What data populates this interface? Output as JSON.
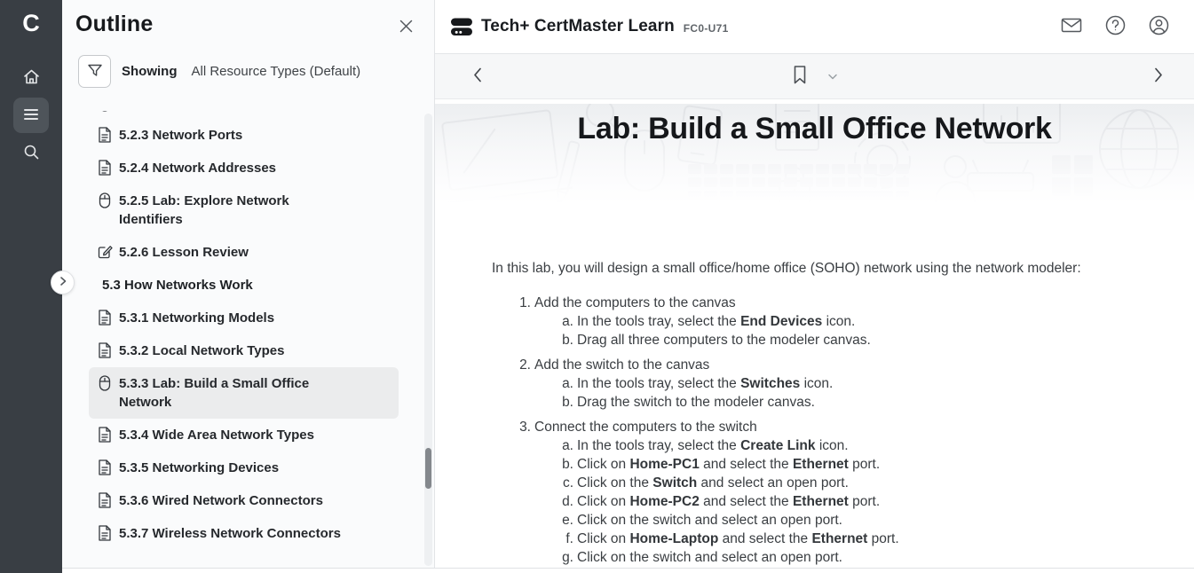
{
  "rail": {
    "logo_letter": "C",
    "items": [
      {
        "name": "home",
        "icon": "home-icon"
      },
      {
        "name": "outline",
        "icon": "outline-list-icon",
        "active": true
      },
      {
        "name": "search",
        "icon": "search-icon"
      }
    ]
  },
  "outline_panel": {
    "title": "Outline",
    "filter": {
      "label": "Showing",
      "value": "All Resource Types (Default)"
    },
    "items": [
      {
        "type": "topic",
        "icon": "mouse-icon",
        "label": "",
        "partial": true
      },
      {
        "type": "topic",
        "icon": "document-icon",
        "label": "5.2.3 Network Ports"
      },
      {
        "type": "topic",
        "icon": "document-icon",
        "label": "5.2.4 Network Addresses"
      },
      {
        "type": "topic",
        "icon": "mouse-icon",
        "label": "5.2.5 Lab: Explore Network Identifiers"
      },
      {
        "type": "topic",
        "icon": "edit-icon",
        "label": "5.2.6 Lesson Review"
      },
      {
        "type": "section",
        "label": "5.3 How Networks Work"
      },
      {
        "type": "topic",
        "icon": "document-icon",
        "label": "5.3.1 Networking Models"
      },
      {
        "type": "topic",
        "icon": "document-icon",
        "label": "5.3.2 Local Network Types"
      },
      {
        "type": "topic",
        "icon": "mouse-icon",
        "label": "5.3.3 Lab: Build a Small Office Network",
        "selected": true
      },
      {
        "type": "topic",
        "icon": "document-icon",
        "label": "5.3.4 Wide Area Network Types"
      },
      {
        "type": "topic",
        "icon": "document-icon",
        "label": "5.3.5 Networking Devices"
      },
      {
        "type": "topic",
        "icon": "document-icon",
        "label": "5.3.6 Wired Network Connectors"
      },
      {
        "type": "topic",
        "icon": "document-icon",
        "label": "5.3.7 Wireless Network Connectors"
      }
    ]
  },
  "header": {
    "title": "Tech+ CertMaster Learn",
    "course_code": "FC0-U71",
    "icons": [
      "mail-icon",
      "help-icon",
      "account-icon"
    ]
  },
  "toolbar": {
    "icons": [
      "chevron-left-icon",
      "bookmark-icon",
      "chevron-down-icon",
      "chevron-right-icon"
    ]
  },
  "content": {
    "title": "Lab: Build a Small Office Network",
    "intro": "In this lab, you will design a small office/home office (SOHO) network using the network modeler:",
    "steps": [
      {
        "number": "1.",
        "text": "Add the computers to the canvas",
        "substeps": [
          {
            "letter": "a.",
            "segments": [
              {
                "text": "In the tools tray, select the ",
                "bold": false
              },
              {
                "text": "End Devices",
                "bold": true
              },
              {
                "text": " icon.",
                "bold": false
              }
            ]
          },
          {
            "letter": "b.",
            "segments": [
              {
                "text": "Drag all three computers to the modeler canvas.",
                "bold": false
              }
            ]
          }
        ]
      },
      {
        "number": "2.",
        "text": "Add the switch to the canvas",
        "substeps": [
          {
            "letter": "a.",
            "segments": [
              {
                "text": "In the tools tray, select the ",
                "bold": false
              },
              {
                "text": "Switches",
                "bold": true
              },
              {
                "text": " icon.",
                "bold": false
              }
            ]
          },
          {
            "letter": "b.",
            "segments": [
              {
                "text": "Drag the switch to the modeler canvas.",
                "bold": false
              }
            ]
          }
        ]
      },
      {
        "number": "3.",
        "text": "Connect the computers to the switch",
        "substeps": [
          {
            "letter": "a.",
            "segments": [
              {
                "text": "In the tools tray, select the ",
                "bold": false
              },
              {
                "text": "Create Link",
                "bold": true
              },
              {
                "text": " icon.",
                "bold": false
              }
            ]
          },
          {
            "letter": "b.",
            "segments": [
              {
                "text": "Click on ",
                "bold": false
              },
              {
                "text": "Home-PC1",
                "bold": true
              },
              {
                "text": " and select the ",
                "bold": false
              },
              {
                "text": "Ethernet",
                "bold": true
              },
              {
                "text": " port.",
                "bold": false
              }
            ]
          },
          {
            "letter": "c.",
            "segments": [
              {
                "text": "Click on the ",
                "bold": false
              },
              {
                "text": "Switch",
                "bold": true
              },
              {
                "text": " and select an open port.",
                "bold": false
              }
            ]
          },
          {
            "letter": "d.",
            "segments": [
              {
                "text": "Click on ",
                "bold": false
              },
              {
                "text": "Home-PC2",
                "bold": true
              },
              {
                "text": " and select the ",
                "bold": false
              },
              {
                "text": "Ethernet",
                "bold": true
              },
              {
                "text": " port.",
                "bold": false
              }
            ]
          },
          {
            "letter": "e.",
            "segments": [
              {
                "text": "Click on the switch and select an open port.",
                "bold": false
              }
            ]
          },
          {
            "letter": "f.",
            "segments": [
              {
                "text": "Click on ",
                "bold": false
              },
              {
                "text": "Home-Laptop",
                "bold": true
              },
              {
                "text": " and select the ",
                "bold": false
              },
              {
                "text": "Ethernet",
                "bold": true
              },
              {
                "text": " port.",
                "bold": false
              }
            ]
          },
          {
            "letter": "g.",
            "segments": [
              {
                "text": "Click on the switch and select an open port.",
                "bold": false
              }
            ]
          }
        ]
      }
    ]
  },
  "colors": {
    "rail_bg": "#393e44",
    "rail_active_bg": "#4e545a",
    "panel_bg": "#fafbfc",
    "selected_item_bg": "#ebeced",
    "toolbar_bg": "#f6f7f8",
    "text_dark": "#17191c",
    "body_text": "#3a3e42"
  }
}
